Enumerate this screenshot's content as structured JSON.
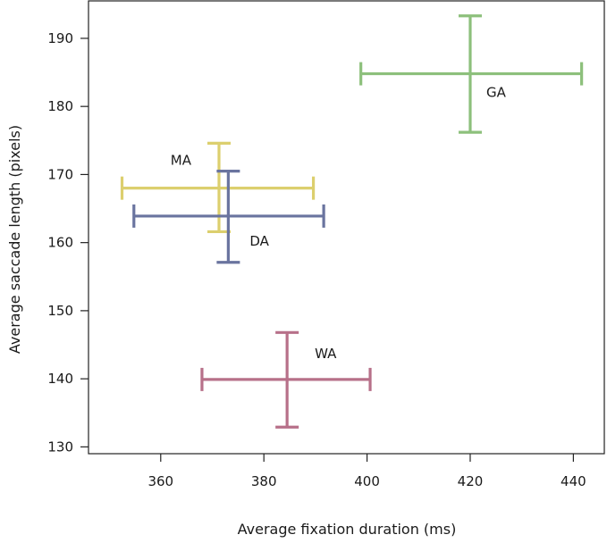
{
  "chart_data": {
    "type": "scatter",
    "title": "",
    "xlabel": "Average fixation duration (ms)",
    "ylabel": "Average saccade length (pixels)",
    "xlim": [
      346,
      446
    ],
    "ylim": [
      129,
      195.5
    ],
    "xticks": [
      360,
      380,
      400,
      420,
      440
    ],
    "yticks": [
      130,
      140,
      150,
      160,
      170,
      180,
      190
    ],
    "grid": false,
    "legend": "none",
    "series": [
      {
        "name": "GA",
        "x": 420.0,
        "y": 184.8,
        "x_err": [
          398.8,
          441.6
        ],
        "y_err": [
          176.2,
          193.3
        ],
        "color": "#8dc07c"
      },
      {
        "name": "MA",
        "x": 371.3,
        "y": 168.0,
        "x_err": [
          352.5,
          389.6
        ],
        "y_err": [
          161.6,
          174.6
        ],
        "color": "#dccf6e"
      },
      {
        "name": "DA",
        "x": 373.1,
        "y": 163.9,
        "x_err": [
          354.8,
          391.6
        ],
        "y_err": [
          157.1,
          170.5
        ],
        "color": "#6a749f"
      },
      {
        "name": "WA",
        "x": 384.5,
        "y": 139.9,
        "x_err": [
          368.0,
          400.6
        ],
        "y_err": [
          132.9,
          146.8
        ],
        "color": "#b77089"
      }
    ]
  }
}
